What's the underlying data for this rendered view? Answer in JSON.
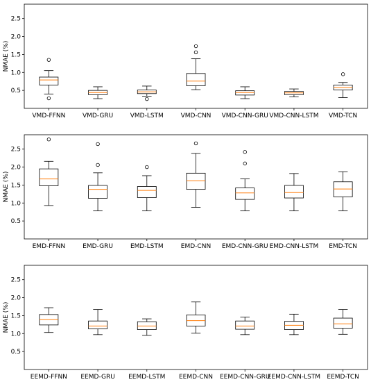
{
  "chart_data": [
    {
      "type": "box",
      "ylabel": "NMAE (%)",
      "ylim": [
        0,
        2.9
      ],
      "yticks": [
        "0.5",
        "1.0",
        "1.5",
        "2.0",
        "2.5"
      ],
      "categories": [
        "VMD-FFNN",
        "VMD-GRU",
        "VMD-LSTM",
        "VMD-CNN",
        "VMD-CNN-GRU",
        "VMD-CNN-LSTM",
        "VMD-TCN"
      ],
      "boxes": [
        {
          "whisker_low": 0.4,
          "q1": 0.65,
          "median": 0.79,
          "q3": 0.87,
          "whisker_high": 1.05,
          "outliers": [
            0.28,
            1.35
          ]
        },
        {
          "whisker_low": 0.27,
          "q1": 0.38,
          "median": 0.44,
          "q3": 0.5,
          "whisker_high": 0.6,
          "outliers": []
        },
        {
          "whisker_low": 0.34,
          "q1": 0.41,
          "median": 0.46,
          "q3": 0.51,
          "whisker_high": 0.62,
          "outliers": [
            0.26
          ]
        },
        {
          "whisker_low": 0.52,
          "q1": 0.63,
          "median": 0.76,
          "q3": 0.97,
          "whisker_high": 1.38,
          "outliers": [
            1.56,
            1.73
          ]
        },
        {
          "whisker_low": 0.27,
          "q1": 0.37,
          "median": 0.44,
          "q3": 0.49,
          "whisker_high": 0.6,
          "outliers": []
        },
        {
          "whisker_low": 0.32,
          "q1": 0.38,
          "median": 0.43,
          "q3": 0.47,
          "whisker_high": 0.54,
          "outliers": []
        },
        {
          "whisker_low": 0.3,
          "q1": 0.51,
          "median": 0.58,
          "q3": 0.65,
          "whisker_high": 0.72,
          "outliers": [
            0.95
          ]
        }
      ]
    },
    {
      "type": "box",
      "ylabel": "NMAE (%)",
      "ylim": [
        0,
        2.9
      ],
      "yticks": [
        "0.5",
        "1.0",
        "1.5",
        "2.0",
        "2.5"
      ],
      "categories": [
        "EMD-FFNN",
        "EMD-GRU",
        "EMD-LSTM",
        "EMD-CNN",
        "EMD-CNN-GRU",
        "EMD-CNN-LSTM",
        "EMD-TCN"
      ],
      "boxes": [
        {
          "whisker_low": 0.93,
          "q1": 1.48,
          "median": 1.67,
          "q3": 1.95,
          "whisker_high": 2.16,
          "outliers": [
            2.77
          ]
        },
        {
          "whisker_low": 0.78,
          "q1": 1.13,
          "median": 1.38,
          "q3": 1.49,
          "whisker_high": 1.84,
          "outliers": [
            2.06,
            2.64
          ]
        },
        {
          "whisker_low": 0.78,
          "q1": 1.15,
          "median": 1.35,
          "q3": 1.46,
          "whisker_high": 1.76,
          "outliers": [
            2.0
          ]
        },
        {
          "whisker_low": 0.88,
          "q1": 1.38,
          "median": 1.62,
          "q3": 1.83,
          "whisker_high": 2.38,
          "outliers": [
            2.66
          ]
        },
        {
          "whisker_low": 0.78,
          "q1": 1.1,
          "median": 1.28,
          "q3": 1.42,
          "whisker_high": 1.67,
          "outliers": [
            2.1,
            2.42
          ]
        },
        {
          "whisker_low": 0.78,
          "q1": 1.14,
          "median": 1.29,
          "q3": 1.49,
          "whisker_high": 1.82,
          "outliers": []
        },
        {
          "whisker_low": 0.78,
          "q1": 1.17,
          "median": 1.39,
          "q3": 1.59,
          "whisker_high": 1.87,
          "outliers": []
        }
      ]
    },
    {
      "type": "box",
      "ylabel": "NMAE (%)",
      "ylim": [
        0,
        2.9
      ],
      "yticks": [
        "0.5",
        "1.0",
        "1.5",
        "2.0",
        "2.5"
      ],
      "categories": [
        "EEMD-FFNN",
        "EEMD-GRU",
        "EEMD-LSTM",
        "EEMD-CNN",
        "EEMD-CNN-GRU",
        "EEMD-CNN-LSTM",
        "EEMD-TCN"
      ],
      "boxes": [
        {
          "whisker_low": 1.03,
          "q1": 1.24,
          "median": 1.39,
          "q3": 1.53,
          "whisker_high": 1.72,
          "outliers": []
        },
        {
          "whisker_low": 0.97,
          "q1": 1.13,
          "median": 1.21,
          "q3": 1.35,
          "whisker_high": 1.67,
          "outliers": []
        },
        {
          "whisker_low": 0.95,
          "q1": 1.11,
          "median": 1.21,
          "q3": 1.33,
          "whisker_high": 1.41,
          "outliers": []
        },
        {
          "whisker_low": 1.01,
          "q1": 1.21,
          "median": 1.36,
          "q3": 1.52,
          "whisker_high": 1.88,
          "outliers": []
        },
        {
          "whisker_low": 0.97,
          "q1": 1.12,
          "median": 1.21,
          "q3": 1.35,
          "whisker_high": 1.46,
          "outliers": []
        },
        {
          "whisker_low": 0.97,
          "q1": 1.11,
          "median": 1.23,
          "q3": 1.34,
          "whisker_high": 1.54,
          "outliers": []
        },
        {
          "whisker_low": 0.98,
          "q1": 1.15,
          "median": 1.27,
          "q3": 1.43,
          "whisker_high": 1.67,
          "outliers": []
        }
      ]
    }
  ],
  "style": {
    "box_color": "#000000",
    "median_color": "#ff7f0e",
    "flier_color": "#000000"
  }
}
